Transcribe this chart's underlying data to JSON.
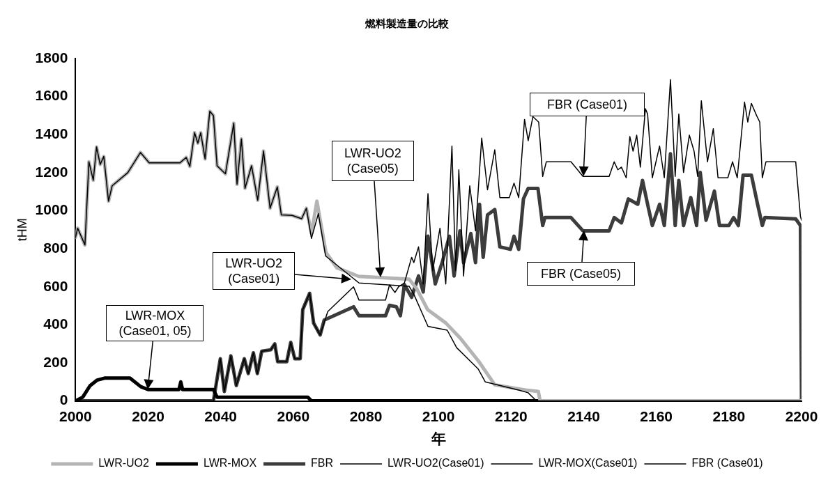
{
  "chart_data": {
    "type": "line",
    "title": "燃料製造量の比較",
    "xlabel": "年",
    "ylabel": "tHM",
    "xlim": [
      2000,
      2200
    ],
    "xticks": [
      2000,
      2020,
      2040,
      2060,
      2080,
      2100,
      2120,
      2140,
      2160,
      2180,
      2200
    ],
    "ylim": [
      0,
      1800
    ],
    "yticks": [
      0,
      200,
      400,
      600,
      800,
      1000,
      1200,
      1400,
      1600,
      1800
    ],
    "grid": false,
    "legend": "bottom",
    "marker": "none",
    "line_style": "solid",
    "series": [
      {
        "name": "LWR-UO2",
        "color": "#b4b4b4",
        "x": [
          2000,
          2000.6,
          2002.6,
          2003.7,
          2004.9,
          2005.8,
          2006.8,
          2007.8,
          2009.1,
          2010.1,
          2014.4,
          2017.9,
          2020.3,
          2028.8,
          2030.5,
          2031.5,
          2032.8,
          2033.7,
          2034.5,
          2035.7,
          2037,
          2038,
          2039,
          2041.3,
          2043.6,
          2044.5,
          2045.7,
          2046.7,
          2048.5,
          2050.2,
          2051.8,
          2053.6,
          2055.6,
          2056.7,
          2059.7,
          2062.3,
          2063.6,
          2065,
          2066.5,
          2069,
          2072,
          2078,
          2091.9,
          2094,
          2097,
          2102,
          2106,
          2111,
          2115.5,
          2124,
          2127.5,
          2128,
          2200
        ],
        "values": [
          860,
          908,
          820,
          1257,
          1160,
          1335,
          1243,
          1285,
          1050,
          1131,
          1200,
          1306,
          1252,
          1252,
          1280,
          1233,
          1410,
          1355,
          1410,
          1272,
          1523,
          1500,
          1236,
          1194,
          1460,
          1139,
          1377,
          1118,
          1236,
          1055,
          1314,
          1013,
          1125,
          978,
          975,
          958,
          1013,
          880,
          1050,
          780,
          700,
          655,
          640,
          590,
          480,
          410,
          330,
          210,
          85,
          57,
          50,
          0,
          0
        ]
      },
      {
        "name": "LWR-MOX",
        "color": "#000000",
        "x": [
          2000,
          2002,
          2004,
          2006,
          2008,
          2015,
          2018,
          2020,
          2028.5,
          2029,
          2029.5,
          2038,
          2039,
          2064,
          2065,
          2200
        ],
        "values": [
          0,
          20,
          80,
          110,
          120,
          120,
          75,
          60,
          60,
          100,
          60,
          60,
          20,
          20,
          0,
          0
        ]
      },
      {
        "name": "FBR",
        "color": "#3c3c3c",
        "x": [
          2000,
          2038,
          2039.9,
          2041,
          2042.8,
          2044.3,
          2046.5,
          2047.6,
          2049,
          2050.1,
          2051.3,
          2053.8,
          2054.9,
          2055.7,
          2058.2,
          2059.3,
          2060.4,
          2061.9,
          2062.6,
          2064.5,
          2065.6,
          2067.4,
          2068.5,
          2076.6,
          2078.1,
          2085.4,
          2086.5,
          2088.4,
          2089.5,
          2090.6,
          2092.6,
          2094.5,
          2095.8,
          2097.1,
          2099.1,
          2101,
          2103,
          2104.3,
          2105.9,
          2106.9,
          2108.9,
          2110.2,
          2111.3,
          2112.3,
          2113.5,
          2115.5,
          2116.9,
          2119.8,
          2120.8,
          2122.1,
          2123.4,
          2124.7,
          2127.4,
          2128.7,
          2129.3,
          2136.5,
          2139.8,
          2147,
          2148.4,
          2150.4,
          2152.3,
          2154.9,
          2156.2,
          2157.6,
          2158.9,
          2160.9,
          2162.2,
          2163.9,
          2165.2,
          2166.2,
          2167.5,
          2169.5,
          2171.1,
          2172.1,
          2173.7,
          2176,
          2177.4,
          2180,
          2181.3,
          2182.6,
          2183.9,
          2186.2,
          2187.9,
          2189.2,
          2189.9,
          2198.4,
          2199.7,
          2200
        ],
        "values": [
          0,
          0,
          222,
          50,
          237,
          81,
          222,
          144,
          253,
          144,
          261,
          269,
          300,
          206,
          206,
          308,
          222,
          222,
          480,
          566,
          409,
          347,
          425,
          495,
          448,
          448,
          503,
          495,
          448,
          612,
          545,
          657,
          573,
          866,
          615,
          727,
          866,
          657,
          894,
          727,
          880,
          727,
          1034,
          755,
          978,
          1006,
          810,
          797,
          866,
          797,
          1062,
          1117,
          1117,
          922,
          964,
          964,
          894,
          894,
          964,
          936,
          1062,
          1034,
          1159,
          1034,
          922,
          1034,
          922,
          1299,
          922,
          1159,
          922,
          1069,
          922,
          1201,
          950,
          1103,
          922,
          922,
          964,
          922,
          1187,
          1187,
          1034,
          922,
          964,
          957,
          922,
          0
        ]
      },
      {
        "name": "LWR-UO2(Case01)",
        "color": "#000000",
        "x": [
          2000,
          2000.6,
          2002.6,
          2003.7,
          2004.9,
          2005.8,
          2006.8,
          2007.8,
          2009.1,
          2010.1,
          2014.4,
          2017.9,
          2020.3,
          2028.8,
          2030.5,
          2031.5,
          2032.8,
          2033.7,
          2034.5,
          2035.7,
          2037,
          2038,
          2039,
          2041.3,
          2043.6,
          2044.5,
          2045.7,
          2046.7,
          2048.5,
          2050.2,
          2051.8,
          2053.6,
          2055.6,
          2056.7,
          2059.7,
          2062.3,
          2063.6,
          2065,
          2066.9,
          2068.9,
          2078.1,
          2091.9,
          2093.2,
          2097.1,
          2102.4,
          2105,
          2110.9,
          2112.9,
          2122.1,
          2124.7,
          2127,
          2200
        ],
        "values": [
          860,
          908,
          820,
          1257,
          1160,
          1335,
          1243,
          1285,
          1050,
          1131,
          1200,
          1306,
          1252,
          1252,
          1280,
          1233,
          1410,
          1355,
          1410,
          1272,
          1523,
          1500,
          1236,
          1194,
          1460,
          1139,
          1377,
          1118,
          1236,
          1055,
          1314,
          1013,
          1125,
          978,
          975,
          958,
          1013,
          854,
          985,
          762,
          620,
          603,
          561,
          392,
          372,
          280,
          169,
          100,
          57,
          43,
          0,
          0
        ]
      },
      {
        "name": "LWR-MOX(Case01)",
        "color": "#000000",
        "x": [
          2000,
          2002,
          2004,
          2006,
          2008,
          2015,
          2018,
          2020,
          2028.5,
          2029,
          2029.5,
          2038,
          2039,
          2064,
          2065,
          2200
        ],
        "values": [
          0,
          20,
          80,
          110,
          120,
          120,
          75,
          60,
          60,
          100,
          60,
          60,
          20,
          20,
          0,
          0
        ]
      },
      {
        "name": "FBR (Case01)",
        "color": "#000000",
        "x": [
          2000,
          2038,
          2039.9,
          2041,
          2042.8,
          2044.3,
          2046.5,
          2047.6,
          2049,
          2050.1,
          2051.3,
          2053.8,
          2054.9,
          2055.7,
          2058.2,
          2059.3,
          2060.4,
          2061.9,
          2062.6,
          2064.5,
          2065.6,
          2067.4,
          2069.5,
          2076.6,
          2078.1,
          2085.4,
          2086.5,
          2088,
          2089,
          2090.6,
          2092.6,
          2093.2,
          2094.5,
          2095.8,
          2097.1,
          2098.4,
          2100.4,
          2102,
          2103.7,
          2104.7,
          2105.6,
          2106.9,
          2108.6,
          2110.2,
          2111.9,
          2113.5,
          2115.5,
          2116.9,
          2119.5,
          2120.8,
          2122.1,
          2123.7,
          2124.7,
          2126,
          2127.6,
          2128.7,
          2129.7,
          2136.5,
          2139.8,
          2147,
          2148.4,
          2149.4,
          2150.4,
          2151.7,
          2152.7,
          2153.6,
          2154.6,
          2155.6,
          2157,
          2157.6,
          2158.9,
          2160.9,
          2162.2,
          2163.9,
          2165.2,
          2166.2,
          2167.5,
          2169.1,
          2170.4,
          2171.4,
          2172.4,
          2174.1,
          2175.7,
          2177,
          2179.7,
          2181,
          2182.3,
          2184.3,
          2185.2,
          2186.2,
          2187.6,
          2188.5,
          2189.2,
          2190.2,
          2198.4,
          2199.7,
          2200
        ],
        "values": [
          0,
          0,
          222,
          50,
          237,
          81,
          222,
          144,
          253,
          144,
          261,
          269,
          300,
          206,
          206,
          308,
          222,
          222,
          480,
          566,
          409,
          347,
          470,
          600,
          530,
          530,
          610,
          570,
          600,
          620,
          755,
          727,
          810,
          615,
          1090,
          685,
          908,
          615,
          1340,
          685,
          1215,
          657,
          1131,
          894,
          1382,
          1110,
          1320,
          1069,
          1069,
          1145,
          1069,
          1480,
          1368,
          1494,
          1466,
          1180,
          1257,
          1257,
          1180,
          1180,
          1257,
          1215,
          1229,
          1173,
          1390,
          1313,
          1397,
          1229,
          1536,
          1508,
          1173,
          1340,
          1173,
          1689,
          1180,
          1508,
          1201,
          1397,
          1313,
          1180,
          1578,
          1257,
          1431,
          1173,
          1173,
          1257,
          1173,
          1571,
          1466,
          1564,
          1501,
          1466,
          1173,
          1257,
          1257,
          970,
          950
        ]
      }
    ],
    "annotations": [
      "LWR-MOX\n(Case01, 05)",
      "LWR-UO2\n(Case01)",
      "LWR-UO2\n(Case05)",
      "FBR (Case01)",
      "FBR (Case05)"
    ]
  }
}
